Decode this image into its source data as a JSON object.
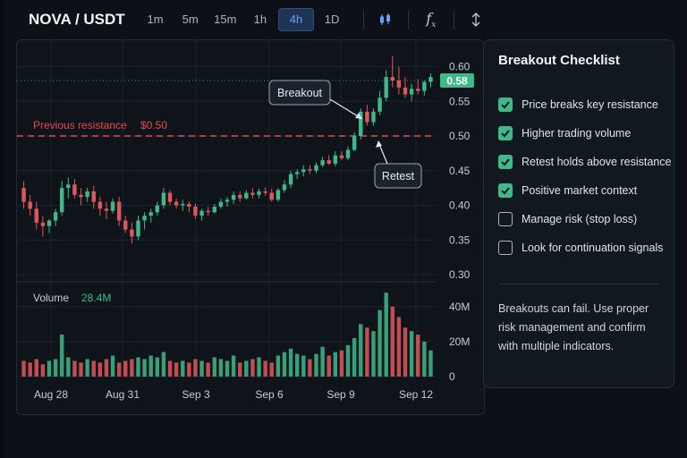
{
  "header": {
    "pair": "NOVA / USDT",
    "timeframes": [
      "1m",
      "5m",
      "15m",
      "1h",
      "4h",
      "1D"
    ],
    "active_timeframe": "4h",
    "tools": [
      "candles-icon",
      "function-icon",
      "drawing-tools-icon"
    ]
  },
  "chart_data": {
    "type": "candlestick",
    "price_axis": {
      "ticks": [
        0.6,
        0.55,
        0.5,
        0.45,
        0.4,
        0.35,
        0.3
      ],
      "range": [
        0.3,
        0.62
      ]
    },
    "volume_axis": {
      "ticks": [
        "40M",
        "20M",
        "0"
      ],
      "range": [
        0,
        45
      ]
    },
    "x_ticks": [
      "Aug 28",
      "Aug 31",
      "Sep 3",
      "Sep 6",
      "Sep 9",
      "Sep 12"
    ],
    "last_price": "0.58",
    "volume_label": "Volume",
    "volume_value": "28.4M",
    "resistance": {
      "label": "Previous resistance",
      "value_label": "$0.50",
      "value": 0.5
    },
    "annotations": {
      "breakout": "Breakout",
      "retest": "Retest"
    },
    "candles": [
      [
        0.425,
        0.435,
        0.395,
        0.405
      ],
      [
        0.405,
        0.415,
        0.385,
        0.395
      ],
      [
        0.395,
        0.405,
        0.365,
        0.375
      ],
      [
        0.375,
        0.385,
        0.355,
        0.37
      ],
      [
        0.37,
        0.38,
        0.36,
        0.378
      ],
      [
        0.378,
        0.395,
        0.37,
        0.39
      ],
      [
        0.39,
        0.435,
        0.385,
        0.425
      ],
      [
        0.425,
        0.44,
        0.41,
        0.43
      ],
      [
        0.43,
        0.438,
        0.41,
        0.415
      ],
      [
        0.415,
        0.425,
        0.4,
        0.412
      ],
      [
        0.412,
        0.425,
        0.405,
        0.42
      ],
      [
        0.42,
        0.428,
        0.395,
        0.405
      ],
      [
        0.405,
        0.412,
        0.385,
        0.395
      ],
      [
        0.395,
        0.405,
        0.38,
        0.392
      ],
      [
        0.392,
        0.41,
        0.388,
        0.405
      ],
      [
        0.405,
        0.412,
        0.37,
        0.378
      ],
      [
        0.378,
        0.385,
        0.36,
        0.365
      ],
      [
        0.365,
        0.375,
        0.345,
        0.355
      ],
      [
        0.355,
        0.385,
        0.35,
        0.378
      ],
      [
        0.378,
        0.39,
        0.365,
        0.385
      ],
      [
        0.385,
        0.395,
        0.375,
        0.39
      ],
      [
        0.39,
        0.405,
        0.385,
        0.4
      ],
      [
        0.4,
        0.425,
        0.395,
        0.418
      ],
      [
        0.418,
        0.422,
        0.4,
        0.405
      ],
      [
        0.405,
        0.41,
        0.395,
        0.4
      ],
      [
        0.4,
        0.408,
        0.392,
        0.402
      ],
      [
        0.402,
        0.406,
        0.39,
        0.398
      ],
      [
        0.398,
        0.402,
        0.38,
        0.385
      ],
      [
        0.385,
        0.395,
        0.378,
        0.392
      ],
      [
        0.392,
        0.398,
        0.385,
        0.39
      ],
      [
        0.39,
        0.402,
        0.388,
        0.398
      ],
      [
        0.398,
        0.41,
        0.395,
        0.405
      ],
      [
        0.405,
        0.412,
        0.398,
        0.408
      ],
      [
        0.408,
        0.42,
        0.402,
        0.415
      ],
      [
        0.415,
        0.42,
        0.405,
        0.41
      ],
      [
        0.41,
        0.422,
        0.408,
        0.418
      ],
      [
        0.418,
        0.425,
        0.41,
        0.415
      ],
      [
        0.415,
        0.424,
        0.41,
        0.42
      ],
      [
        0.42,
        0.426,
        0.414,
        0.418
      ],
      [
        0.418,
        0.424,
        0.405,
        0.408
      ],
      [
        0.408,
        0.425,
        0.405,
        0.422
      ],
      [
        0.422,
        0.436,
        0.418,
        0.43
      ],
      [
        0.43,
        0.45,
        0.425,
        0.445
      ],
      [
        0.445,
        0.452,
        0.438,
        0.448
      ],
      [
        0.448,
        0.458,
        0.442,
        0.452
      ],
      [
        0.452,
        0.458,
        0.445,
        0.45
      ],
      [
        0.45,
        0.462,
        0.446,
        0.458
      ],
      [
        0.458,
        0.47,
        0.455,
        0.465
      ],
      [
        0.465,
        0.472,
        0.458,
        0.46
      ],
      [
        0.46,
        0.478,
        0.456,
        0.472
      ],
      [
        0.472,
        0.478,
        0.465,
        0.468
      ],
      [
        0.468,
        0.485,
        0.465,
        0.48
      ],
      [
        0.48,
        0.505,
        0.478,
        0.5
      ],
      [
        0.5,
        0.54,
        0.495,
        0.535
      ],
      [
        0.535,
        0.545,
        0.515,
        0.52
      ],
      [
        0.52,
        0.54,
        0.515,
        0.535
      ],
      [
        0.535,
        0.565,
        0.53,
        0.555
      ],
      [
        0.555,
        0.595,
        0.55,
        0.585
      ],
      [
        0.585,
        0.615,
        0.57,
        0.58
      ],
      [
        0.58,
        0.6,
        0.56,
        0.57
      ],
      [
        0.57,
        0.585,
        0.555,
        0.56
      ],
      [
        0.56,
        0.575,
        0.55,
        0.568
      ],
      [
        0.568,
        0.582,
        0.56,
        0.565
      ],
      [
        0.565,
        0.58,
        0.558,
        0.578
      ],
      [
        0.578,
        0.59,
        0.57,
        0.585
      ]
    ],
    "volumes": [
      9,
      8,
      10,
      7,
      9,
      10,
      24,
      11,
      9,
      8,
      10,
      9,
      8,
      10,
      12,
      8,
      9,
      10,
      11,
      10,
      12,
      11,
      14,
      9,
      8,
      9,
      8,
      10,
      9,
      8,
      11,
      10,
      9,
      12,
      8,
      9,
      10,
      11,
      9,
      8,
      12,
      14,
      16,
      13,
      12,
      10,
      13,
      17,
      12,
      14,
      15,
      18,
      22,
      30,
      28,
      26,
      38,
      48,
      40,
      34,
      28,
      26,
      24,
      20,
      15
    ]
  },
  "checklist": {
    "title": "Breakout Checklist",
    "items": [
      {
        "label": "Price breaks key resistance",
        "checked": true
      },
      {
        "label": "Higher trading volume",
        "checked": true
      },
      {
        "label": "Retest holds above resistance",
        "checked": true
      },
      {
        "label": "Positive market context",
        "checked": true
      },
      {
        "label": "Manage risk (stop loss)",
        "checked": false
      },
      {
        "label": "Look for continuation signals",
        "checked": false
      }
    ],
    "note": "Breakouts can fail. Use proper risk management and confirm with multiple indicators."
  },
  "colors": {
    "up": "#3fb98a",
    "down": "#e0575a",
    "resistance": "#e5484d",
    "price_tag": "#3fb98a",
    "accent": "#5fa2ff"
  }
}
